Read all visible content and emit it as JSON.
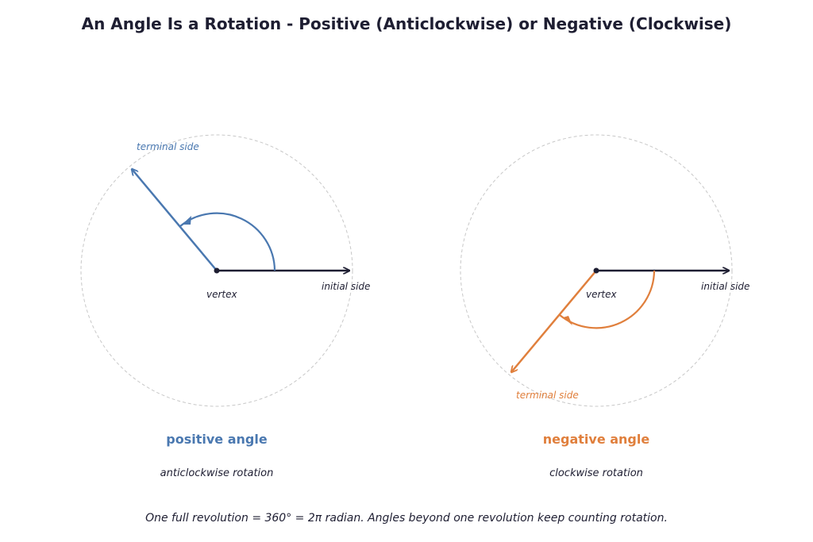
{
  "title": "An Angle Is a Rotation - Positive (Anticlockwise) or Negative (Clockwise)",
  "colors": {
    "positive": "#4a78b0",
    "negative": "#e07f3c",
    "ink": "#1e1e32",
    "circle": "#c8c8c8"
  },
  "left": {
    "terminal_label": "terminal side",
    "initial_label": "initial side",
    "vertex_label": "vertex",
    "heading": "positive angle",
    "subheading": "anticlockwise rotation"
  },
  "right": {
    "terminal_label": "terminal side",
    "initial_label": "initial side",
    "vertex_label": "vertex",
    "heading": "negative angle",
    "subheading": "clockwise rotation"
  },
  "footer": "One full revolution = 360° = 2π radian. Angles beyond one revolution keep counting rotation."
}
